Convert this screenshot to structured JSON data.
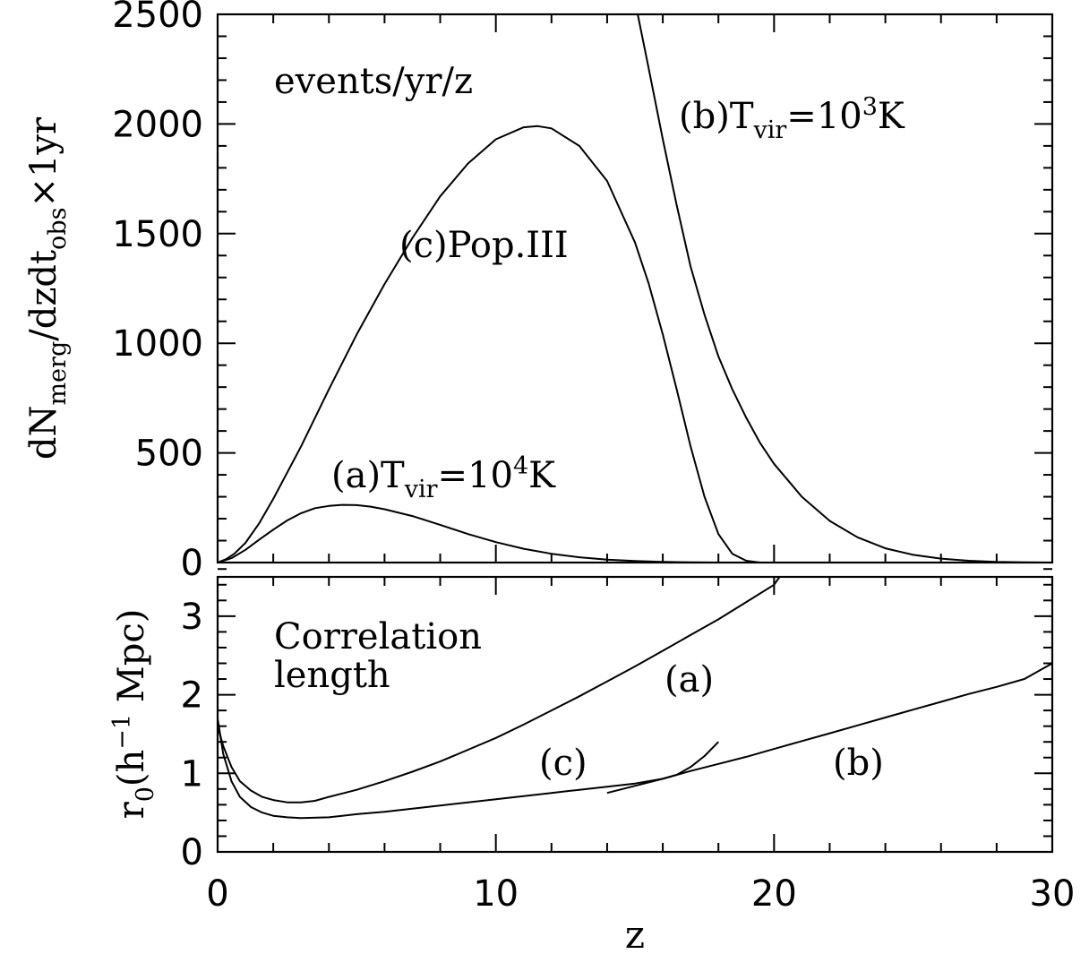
{
  "chart_data": [
    {
      "type": "line",
      "panel": "top",
      "xlabel": "z",
      "ylabel": "dN_merg/dzdt_obs×1yr",
      "ylabel_parts": {
        "a": "dN",
        "b": "merg",
        "c": "/dzdt",
        "d": "obs",
        "e": "×1yr"
      },
      "xlim": [
        0,
        30
      ],
      "ylim": [
        0,
        2500
      ],
      "x_ticks": [
        "0",
        "10",
        "20",
        "30"
      ],
      "y_ticks": [
        "0",
        "500",
        "1000",
        "1500",
        "2000",
        "2500"
      ],
      "grid": false,
      "annotations": {
        "units": "events/yr/z",
        "curve_a": {
          "prefix": "(a)T",
          "sub": "vir",
          "eq": "=10",
          "sup": "4",
          "suffix": "K"
        },
        "curve_b": {
          "prefix": "(b)T",
          "sub": "vir",
          "eq": "=10",
          "sup": "3",
          "suffix": "K"
        },
        "curve_c": "(c)Pop.III"
      },
      "series": [
        {
          "id": "a",
          "x": [
            0,
            0.5,
            1,
            1.5,
            2,
            2.5,
            3,
            3.5,
            4,
            4.5,
            5,
            5.5,
            6,
            7,
            8,
            9,
            10,
            11,
            12,
            13,
            14,
            15,
            16,
            17,
            18,
            19,
            20
          ],
          "y": [
            0,
            20,
            58,
            105,
            150,
            192,
            225,
            248,
            258,
            263,
            262,
            255,
            243,
            212,
            172,
            130,
            93,
            63,
            40,
            24,
            13,
            7,
            3,
            1,
            0,
            0,
            0
          ]
        },
        {
          "id": "b",
          "x": [
            15.1,
            15.5,
            16,
            16.5,
            17,
            17.5,
            18,
            18.5,
            19,
            19.5,
            20,
            21,
            22,
            23,
            24,
            25,
            26,
            27,
            28,
            29,
            30
          ],
          "y": [
            2500,
            2250,
            1930,
            1630,
            1350,
            1130,
            940,
            790,
            660,
            545,
            450,
            300,
            190,
            115,
            65,
            35,
            18,
            8,
            3,
            1,
            0
          ]
        },
        {
          "id": "c",
          "x": [
            0,
            0.3,
            0.6,
            1,
            1.5,
            2,
            3,
            4,
            5,
            6,
            7,
            8,
            9,
            10,
            11,
            11.5,
            12,
            13,
            14,
            15,
            15.5,
            16,
            16.5,
            17,
            17.5,
            18,
            18.5,
            19,
            19.5,
            20
          ],
          "y": [
            0,
            15,
            40,
            90,
            180,
            290,
            530,
            790,
            1040,
            1270,
            1480,
            1670,
            1820,
            1930,
            1985,
            1990,
            1980,
            1900,
            1740,
            1460,
            1270,
            1040,
            790,
            530,
            300,
            130,
            40,
            8,
            0,
            0
          ]
        }
      ]
    },
    {
      "type": "line",
      "panel": "bottom",
      "xlabel": "z",
      "ylabel": "r0(h-1 Mpc)",
      "ylabel_parts": {
        "a": "r",
        "b": "0",
        "c": "(h",
        "d": "−1",
        "e": " Mpc)"
      },
      "xlim": [
        0,
        30
      ],
      "ylim": [
        0,
        3.5
      ],
      "x_ticks": [
        "0",
        "10",
        "20",
        "30"
      ],
      "y_ticks": [
        "0",
        "1",
        "2",
        "3"
      ],
      "grid": false,
      "annotations": {
        "title_line1": "Correlation",
        "title_line2": "length",
        "curve_a": "(a)",
        "curve_b": "(b)",
        "curve_c": "(c)"
      },
      "series": [
        {
          "id": "a",
          "x": [
            0,
            0.2,
            0.5,
            0.8,
            1.2,
            1.6,
            2,
            2.5,
            3,
            3.5,
            4,
            5,
            6,
            7,
            8,
            9,
            10,
            11,
            12,
            13,
            14,
            15,
            16,
            17,
            18,
            19,
            20,
            20.2
          ],
          "y": [
            1.6,
            1.35,
            1.08,
            0.9,
            0.78,
            0.7,
            0.66,
            0.63,
            0.63,
            0.65,
            0.7,
            0.79,
            0.9,
            1.02,
            1.15,
            1.3,
            1.45,
            1.62,
            1.8,
            1.98,
            2.17,
            2.36,
            2.56,
            2.76,
            2.96,
            3.18,
            3.4,
            3.5
          ]
        },
        {
          "id": "b",
          "x": [
            14,
            15,
            16,
            17,
            18,
            19,
            20,
            21,
            22,
            23,
            24,
            25,
            26,
            27,
            28,
            29,
            30
          ],
          "y": [
            0.75,
            0.84,
            0.93,
            1.03,
            1.12,
            1.21,
            1.31,
            1.41,
            1.51,
            1.61,
            1.71,
            1.81,
            1.91,
            2.01,
            2.1,
            2.2,
            2.4
          ]
        },
        {
          "id": "c",
          "x": [
            0,
            0.2,
            0.5,
            0.8,
            1.2,
            1.6,
            2,
            2.5,
            3,
            4,
            5,
            6,
            7,
            8,
            9,
            10,
            11,
            12,
            13,
            14,
            15,
            16,
            16.5,
            17,
            17.5,
            18
          ],
          "y": [
            1.7,
            1.25,
            0.9,
            0.7,
            0.57,
            0.5,
            0.46,
            0.44,
            0.43,
            0.44,
            0.48,
            0.51,
            0.55,
            0.59,
            0.63,
            0.67,
            0.71,
            0.75,
            0.79,
            0.83,
            0.87,
            0.93,
            0.98,
            1.08,
            1.22,
            1.4
          ]
        }
      ]
    }
  ]
}
